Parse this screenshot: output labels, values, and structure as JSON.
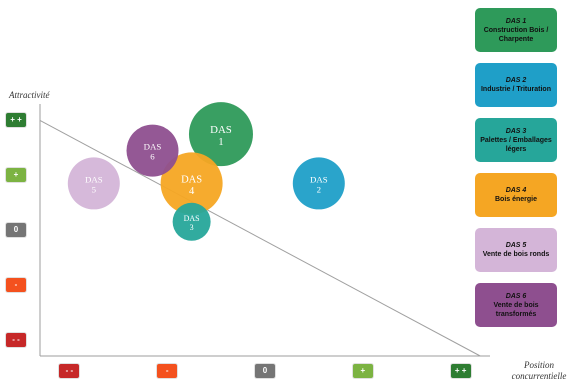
{
  "chart_data": {
    "type": "scatter",
    "title": "",
    "xlabel": "Position concurrentielle",
    "ylabel": "Attractivité",
    "x_ticks": [
      "- -",
      "-",
      "0",
      "+",
      "+ +"
    ],
    "y_ticks": [
      "+ +",
      "+",
      "0",
      "-",
      "- -"
    ],
    "tick_colors": {
      "+ +": "#2e7d32",
      "+": "#7cb342",
      "0": "#757575",
      "-": "#f4511e",
      "- -": "#c62828"
    },
    "xlim": [
      -2.3,
      2.3
    ],
    "ylim": [
      -2.3,
      2.3
    ],
    "trend_line": {
      "from": [
        -2.3,
        2.0
      ],
      "to": [
        2.2,
        -2.3
      ]
    },
    "points": [
      {
        "label_top": "DAS",
        "label_bottom": "1",
        "x": -0.45,
        "y": 1.75,
        "size": 1.6,
        "color": "#2e9a5a"
      },
      {
        "label_top": "DAS",
        "label_bottom": "2",
        "x": 0.55,
        "y": 0.85,
        "size": 1.3,
        "color": "#1f9fc8"
      },
      {
        "label_top": "DAS",
        "label_bottom": "3",
        "x": -0.75,
        "y": 0.15,
        "size": 0.95,
        "color": "#26a69a"
      },
      {
        "label_top": "DAS",
        "label_bottom": "4",
        "x": -0.75,
        "y": 0.85,
        "size": 1.55,
        "color": "#f5a623"
      },
      {
        "label_top": "DAS",
        "label_bottom": "5",
        "x": -1.75,
        "y": 0.85,
        "size": 1.3,
        "color": "#d4b5d8"
      },
      {
        "label_top": "DAS",
        "label_bottom": "6",
        "x": -1.15,
        "y": 1.45,
        "size": 1.3,
        "color": "#8e4f8f"
      }
    ],
    "legend": [
      {
        "name": "DAS 1",
        "desc": "Construction Bois / Charpente",
        "color": "#2e9a5a"
      },
      {
        "name": "DAS 2",
        "desc": "Industrie / Trituration",
        "color": "#1f9fc8"
      },
      {
        "name": "DAS 3",
        "desc": "Palettes / Emballages légers",
        "color": "#26a69a"
      },
      {
        "name": "DAS 4",
        "desc": "Bois énergie",
        "color": "#f5a623"
      },
      {
        "name": "DAS 5",
        "desc": "Vente de bois ronds",
        "color": "#d4b5d8"
      },
      {
        "name": "DAS 6",
        "desc": "Vente de bois transformés",
        "color": "#8e4f8f"
      }
    ],
    "legend_placement": "right",
    "grid": false
  }
}
